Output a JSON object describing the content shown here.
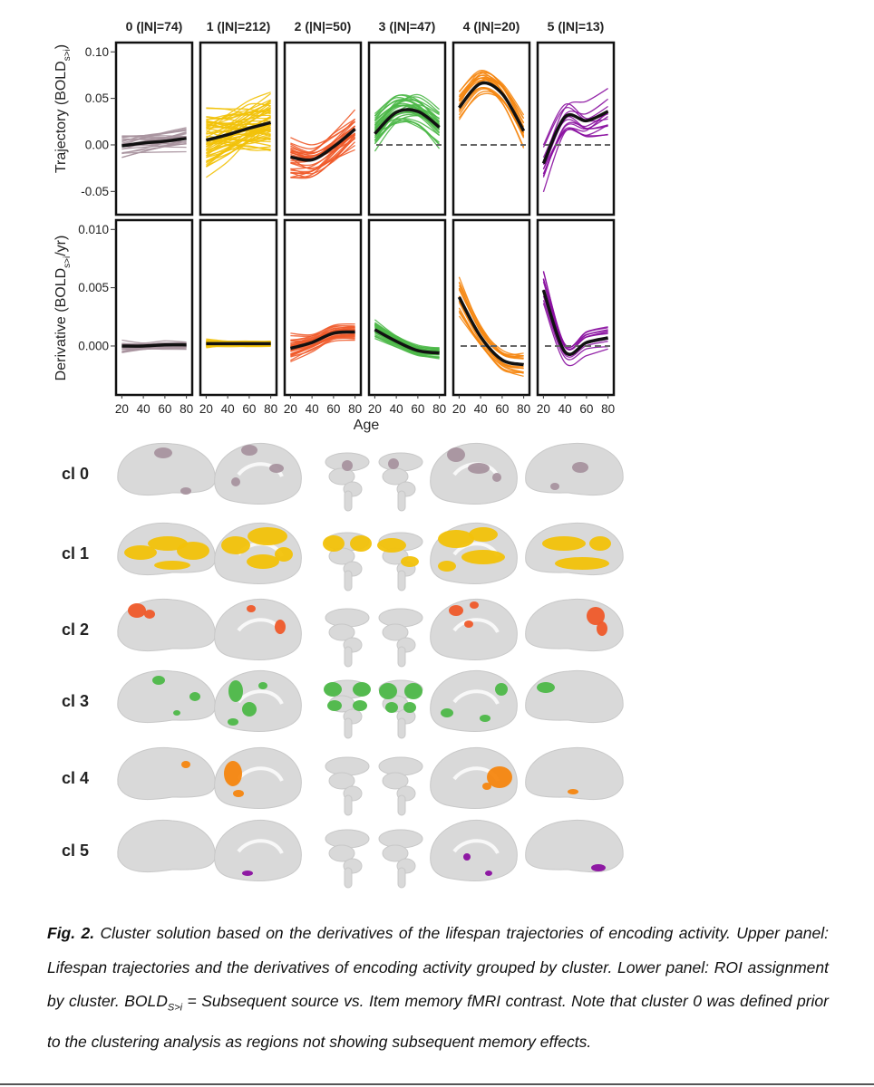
{
  "figure": {
    "panel_titles": [
      "0 (|N|=74)",
      "1 (|N|=212)",
      "2 (|N|=50)",
      "3 (|N|=47)",
      "4 (|N|=20)",
      "5 (|N|=13)"
    ],
    "trajectory_ylabel": "Trajectory (BOLD",
    "trajectory_ylabel_sub": "s>i",
    "trajectory_ylabel_end": ")",
    "derivative_ylabel": "Derivative (BOLD",
    "derivative_ylabel_sub": "s>i",
    "derivative_ylabel_end": "/yr)",
    "trajectory_yticks": [
      "0.10",
      "0.05",
      "0.00",
      "-0.05"
    ],
    "derivative_yticks": [
      "0.010",
      "0.005",
      "0.000"
    ],
    "xticks": [
      "20",
      "40",
      "60",
      "80"
    ],
    "xlabel": "Age",
    "cluster_colors": [
      "#a8949f",
      "#f2c20a",
      "#ef5a2a",
      "#4db848",
      "#f5860f",
      "#8a0fa0"
    ],
    "brain_row_labels": [
      "cl 0",
      "cl 1",
      "cl 2",
      "cl 3",
      "cl 4",
      "cl 5"
    ]
  },
  "caption": {
    "fig_label": "Fig. 2.",
    "body": "Cluster solution based on the derivatives of the lifespan trajectories of encoding activity. Upper panel: Lifespan trajectories and the derivatives of encoding activity grouped by cluster. Lower panel: ROI assignment by cluster. BOLD",
    "sub": "S>i",
    "tail": " = Subsequent source vs. Item memory fMRI contrast. Note that cluster 0 was defined prior to the clustering analysis as regions not showing subsequent memory effects."
  },
  "chart_data": [
    {
      "type": "line",
      "title": "",
      "xlabel": "Age",
      "ylabel": "Trajectory (BOLDs>i)",
      "x": [
        20,
        40,
        60,
        80
      ],
      "ylim": [
        -0.075,
        0.11
      ],
      "panels": [
        "0 (|N|=74)",
        "1 (|N|=212)",
        "2 (|N|=50)",
        "3 (|N|=47)",
        "4 (|N|=20)",
        "5 (|N|=13)"
      ],
      "series": [
        {
          "cluster": 0,
          "values": [
            -0.001,
            0.002,
            0.004,
            0.007
          ]
        },
        {
          "cluster": 1,
          "values": [
            0.005,
            0.011,
            0.018,
            0.024
          ]
        },
        {
          "cluster": 2,
          "values": [
            -0.013,
            -0.016,
            -0.002,
            0.017
          ]
        },
        {
          "cluster": 3,
          "values": [
            0.012,
            0.035,
            0.036,
            0.019
          ]
        },
        {
          "cluster": 4,
          "values": [
            0.04,
            0.066,
            0.055,
            0.015
          ]
        },
        {
          "cluster": 5,
          "values": [
            -0.02,
            0.03,
            0.026,
            0.036
          ]
        }
      ]
    },
    {
      "type": "line",
      "title": "",
      "xlabel": "Age",
      "ylabel": "Derivative (BOLDs>i/yr)",
      "x": [
        20,
        40,
        60,
        80
      ],
      "ylim": [
        -0.0042,
        0.0108
      ],
      "panels": [
        "0 (|N|=74)",
        "1 (|N|=212)",
        "2 (|N|=50)",
        "3 (|N|=47)",
        "4 (|N|=20)",
        "5 (|N|=13)"
      ],
      "series": [
        {
          "cluster": 0,
          "values": [
            0.0,
            0.0,
            0.0001,
            0.0001
          ]
        },
        {
          "cluster": 1,
          "values": [
            0.0002,
            0.0002,
            0.0002,
            0.0002
          ]
        },
        {
          "cluster": 2,
          "values": [
            -0.0002,
            0.0003,
            0.0011,
            0.0012
          ]
        },
        {
          "cluster": 3,
          "values": [
            0.0014,
            0.0004,
            -0.0004,
            -0.0006
          ]
        },
        {
          "cluster": 4,
          "values": [
            0.0042,
            0.0008,
            -0.0012,
            -0.0016
          ]
        },
        {
          "cluster": 5,
          "values": [
            0.0048,
            -0.0005,
            0.0003,
            0.0007
          ]
        }
      ]
    }
  ]
}
